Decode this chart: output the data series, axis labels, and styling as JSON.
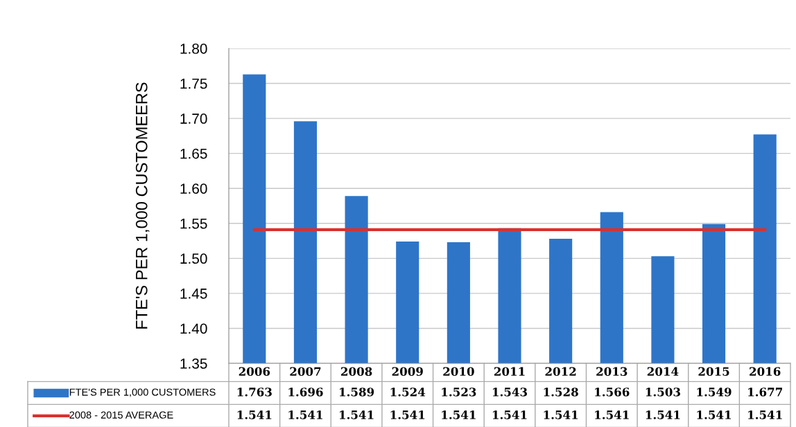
{
  "chart_data": {
    "type": "bar",
    "ylabel": "FTE'S PER 1,000 CUSTOMEERS",
    "categories": [
      "2006",
      "2007",
      "2008",
      "2009",
      "2010",
      "2011",
      "2012",
      "2013",
      "2014",
      "2015",
      "2016"
    ],
    "series": [
      {
        "name": "FTE'S PER 1,000 CUSTOMERS",
        "color": "#2e75c8",
        "values": [
          1.763,
          1.696,
          1.589,
          1.524,
          1.523,
          1.543,
          1.528,
          1.566,
          1.503,
          1.549,
          1.677
        ]
      },
      {
        "name": "2008 - 2015 AVERAGE",
        "type": "line",
        "color": "#d9312f",
        "values": [
          1.541,
          1.541,
          1.541,
          1.541,
          1.541,
          1.541,
          1.541,
          1.541,
          1.541,
          1.541,
          1.541
        ]
      }
    ],
    "ylim": [
      1.35,
      1.8
    ],
    "yticks": [
      "1.35",
      "1.40",
      "1.45",
      "1.50",
      "1.55",
      "1.60",
      "1.65",
      "1.70",
      "1.75",
      "1.80"
    ],
    "grid": "y",
    "legend": "bottom",
    "data_labels": true
  }
}
